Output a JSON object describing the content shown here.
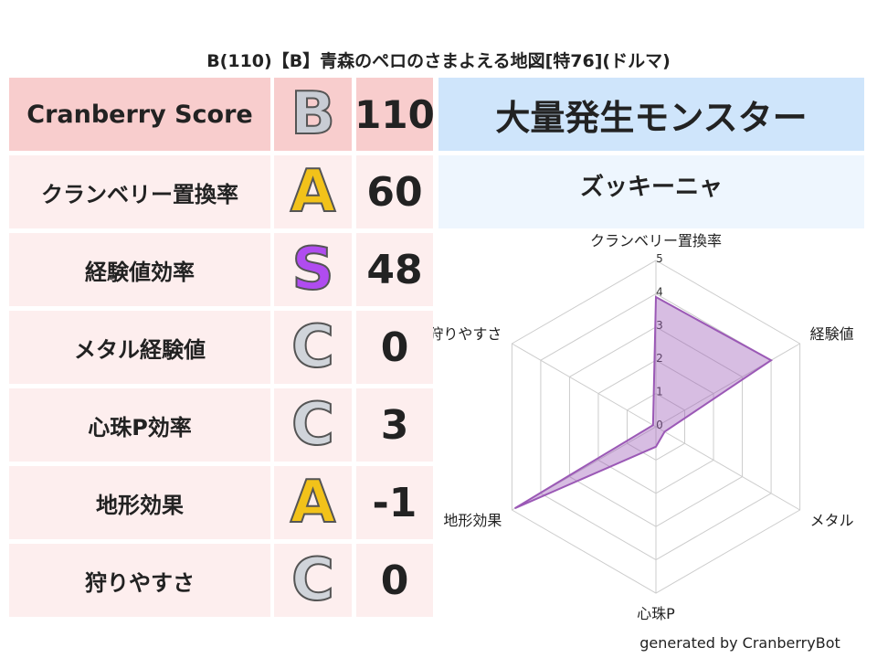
{
  "header": {
    "title": "B(110)【B】青森のペロのさまよえる地図[特76](ドルマ)"
  },
  "table": {
    "rows": [
      {
        "label": "Cranberry Score",
        "grade": "B",
        "score": 110
      },
      {
        "label": "クランベリー置換率",
        "grade": "A",
        "score": 60
      },
      {
        "label": "経験値効率",
        "grade": "S",
        "score": 48
      },
      {
        "label": "メタル経験値",
        "grade": "C",
        "score": 0
      },
      {
        "label": "心珠P効率",
        "grade": "C",
        "score": 3
      },
      {
        "label": "地形効果",
        "grade": "A",
        "score": -1
      },
      {
        "label": "狩りやすさ",
        "grade": "C",
        "score": 0
      }
    ]
  },
  "panel": {
    "title": "大量発生モンスター",
    "monster": "ズッキーニャ"
  },
  "chart_data": {
    "type": "radar",
    "categories": [
      "クランベリー置換率",
      "経験値",
      "メタル",
      "心珠P",
      "地形効果",
      "狩りやすさ"
    ],
    "values": [
      3.9,
      4.0,
      0.3,
      0.6,
      4.9,
      0.1
    ],
    "color": "#9b59b6",
    "rlim": [
      0,
      5
    ],
    "rticks": [
      0,
      1,
      2,
      3,
      4,
      5
    ]
  },
  "footer": {
    "text": "generated by CranberryBot"
  }
}
